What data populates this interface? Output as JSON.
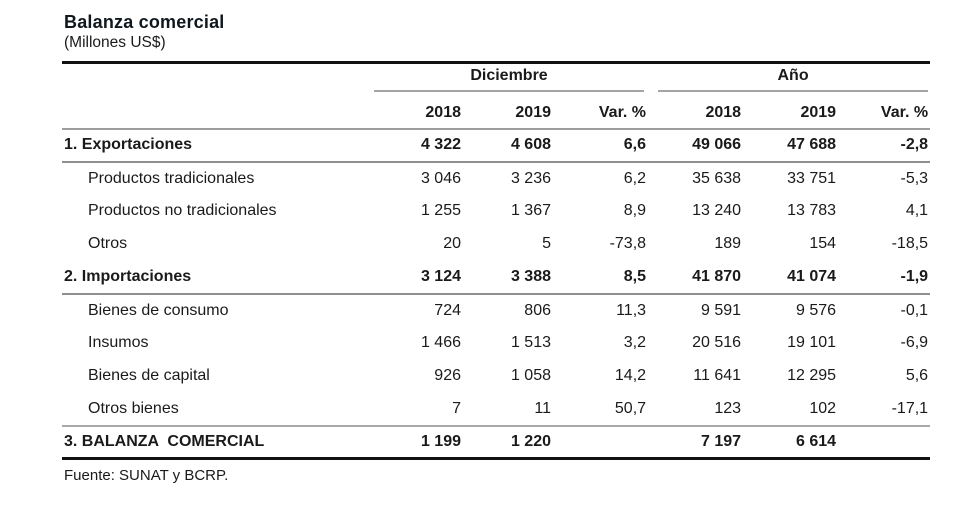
{
  "page": {
    "title": "Balanza comercial",
    "subtitle": "(Millones US$)",
    "source": "Fuente: SUNAT y BCRP."
  },
  "table": {
    "groups": [
      {
        "label": "Diciembre"
      },
      {
        "label": "Año"
      }
    ],
    "sub_headers": [
      "2018",
      "2019",
      "Var. %",
      "2018",
      "2019",
      "Var. %"
    ],
    "rows": [
      {
        "type": "section",
        "label": "1. Exportaciones",
        "values": [
          "4 322",
          "4 608",
          "6,6",
          "49 066",
          "47 688",
          "-2,8"
        ]
      },
      {
        "type": "sub",
        "label": "Productos tradicionales",
        "values": [
          "3 046",
          "3 236",
          "6,2",
          "35 638",
          "33 751",
          "-5,3"
        ]
      },
      {
        "type": "sub",
        "label": "Productos no tradicionales",
        "values": [
          "1 255",
          "1 367",
          "8,9",
          "13 240",
          "13 783",
          "4,1"
        ]
      },
      {
        "type": "sub",
        "label": "Otros",
        "values": [
          "20",
          "5",
          "-73,8",
          "189",
          "154",
          "-18,5"
        ]
      },
      {
        "type": "section",
        "label": "2. Importaciones",
        "values": [
          "3 124",
          "3 388",
          "8,5",
          "41 870",
          "41 074",
          "-1,9"
        ]
      },
      {
        "type": "sub",
        "label": "Bienes de consumo",
        "values": [
          "724",
          "806",
          "11,3",
          "9 591",
          "9 576",
          "-0,1"
        ]
      },
      {
        "type": "sub",
        "label": "Insumos",
        "values": [
          "1 466",
          "1 513",
          "3,2",
          "20 516",
          "19 101",
          "-6,9"
        ]
      },
      {
        "type": "sub",
        "label": "Bienes de capital",
        "values": [
          "926",
          "1 058",
          "14,2",
          "11 641",
          "12 295",
          "5,6"
        ]
      },
      {
        "type": "sub",
        "label": "Otros bienes",
        "values": [
          "7",
          "11",
          "50,7",
          "123",
          "102",
          "-17,1"
        ]
      },
      {
        "type": "total",
        "label": "3. BALANZA  COMERCIAL",
        "values": [
          "1 199",
          "1 220",
          "",
          "7 197",
          "6 614",
          ""
        ]
      }
    ]
  },
  "chart_data": {
    "type": "table",
    "title": "Balanza comercial",
    "units": "Millones US$",
    "column_groups": [
      "Diciembre",
      "Año"
    ],
    "columns": [
      "Diciembre 2018",
      "Diciembre 2019",
      "Diciembre Var. %",
      "Año 2018",
      "Año 2019",
      "Año Var. %"
    ],
    "rows": [
      {
        "label": "1. Exportaciones",
        "values": [
          4322,
          4608,
          6.6,
          49066,
          47688,
          -2.8
        ]
      },
      {
        "label": "Productos tradicionales",
        "values": [
          3046,
          3236,
          6.2,
          35638,
          33751,
          -5.3
        ]
      },
      {
        "label": "Productos no tradicionales",
        "values": [
          1255,
          1367,
          8.9,
          13240,
          13783,
          4.1
        ]
      },
      {
        "label": "Otros",
        "values": [
          20,
          5,
          -73.8,
          189,
          154,
          -18.5
        ]
      },
      {
        "label": "2. Importaciones",
        "values": [
          3124,
          3388,
          8.5,
          41870,
          41074,
          -1.9
        ]
      },
      {
        "label": "Bienes de consumo",
        "values": [
          724,
          806,
          11.3,
          9591,
          9576,
          -0.1
        ]
      },
      {
        "label": "Insumos",
        "values": [
          1466,
          1513,
          3.2,
          20516,
          19101,
          -6.9
        ]
      },
      {
        "label": "Bienes de capital",
        "values": [
          926,
          1058,
          14.2,
          11641,
          12295,
          5.6
        ]
      },
      {
        "label": "Otros bienes",
        "values": [
          7,
          11,
          50.7,
          123,
          102,
          -17.1
        ]
      },
      {
        "label": "3. BALANZA COMERCIAL",
        "values": [
          1199,
          1220,
          null,
          7197,
          6614,
          null
        ]
      }
    ],
    "source": "Fuente: SUNAT y BCRP."
  }
}
